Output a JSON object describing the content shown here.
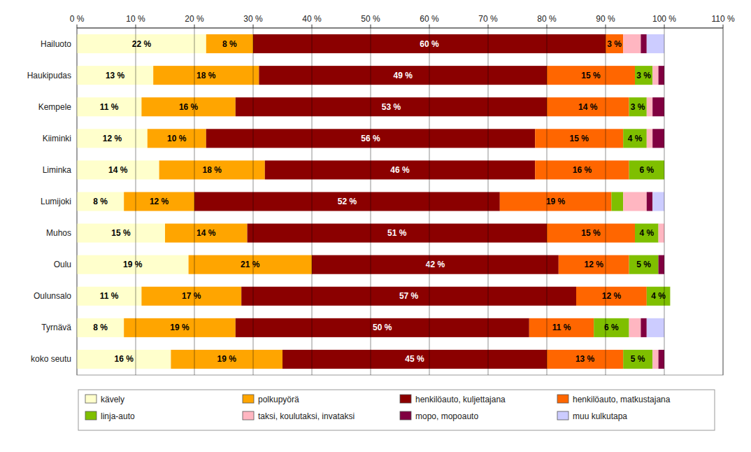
{
  "chart_data": {
    "type": "bar",
    "orientation": "horizontal",
    "stacked": true,
    "grid": true,
    "legend": "bottom",
    "data_labels": true,
    "categories": [
      "Hailuoto",
      "Haukipudas",
      "Kempele",
      "Kiiminki",
      "Liminka",
      "Lumijoki",
      "Muhos",
      "Oulu",
      "Oulunsalo",
      "Tyrnävä",
      "koko seutu"
    ],
    "series": [
      {
        "name": "kävely",
        "color": "#FFFFCC",
        "values": [
          22,
          13,
          11,
          12,
          14,
          8,
          15,
          19,
          11,
          8,
          16
        ],
        "value_labels": [
          "22 %",
          "13 %",
          "11 %",
          "12 %",
          "14 %",
          "8 %",
          "15 %",
          "19 %",
          "11 %",
          "8 %",
          "16 %"
        ]
      },
      {
        "name": "polkupyörä",
        "color": "#FFA500",
        "values": [
          8,
          18,
          16,
          10,
          18,
          12,
          14,
          21,
          17,
          19,
          19
        ],
        "value_labels": [
          "8 %",
          "18 %",
          "16 %",
          "10 %",
          "18 %",
          "12 %",
          "14 %",
          "21 %",
          "17 %",
          "19 %",
          "19 %"
        ]
      },
      {
        "name": "henkilöauto, kuljettajana",
        "color": "#8B0000",
        "values": [
          60,
          49,
          53,
          56,
          46,
          52,
          51,
          42,
          57,
          50,
          45
        ],
        "value_labels": [
          "60 %",
          "49 %",
          "53 %",
          "56 %",
          "46 %",
          "52 %",
          "51 %",
          "42 %",
          "57 %",
          "50 %",
          "45 %"
        ]
      },
      {
        "name": "henkilöauto, matkustajana",
        "color": "#FF6600",
        "values": [
          3,
          15,
          14,
          15,
          16,
          19,
          15,
          12,
          12,
          11,
          13
        ],
        "value_labels": [
          "3 %",
          "15 %",
          "14 %",
          "15 %",
          "16 %",
          "19 %",
          "15 %",
          "12 %",
          "12 %",
          "11 %",
          "13 %"
        ]
      },
      {
        "name": "linja-auto",
        "color": "#7FBF00",
        "values": [
          0,
          3,
          3,
          4,
          6,
          2,
          4,
          5,
          4,
          6,
          5
        ],
        "value_labels": [
          null,
          "3 %",
          "3 %",
          "4 %",
          "6 %",
          null,
          "4 %",
          "5 %",
          "4 %",
          "6 %",
          "5 %"
        ]
      },
      {
        "name": "taksi, koulutaksi, invataksi",
        "color": "#FFB6C1",
        "values": [
          3,
          1,
          1,
          1,
          0,
          4,
          1,
          0,
          0,
          2,
          1
        ]
      },
      {
        "name": "mopo, mopoauto",
        "color": "#800040",
        "values": [
          1,
          1,
          2,
          2,
          0,
          1,
          0,
          1,
          0,
          1,
          1
        ]
      },
      {
        "name": "muu kulkutapa",
        "color": "#CCCCFF",
        "values": [
          3,
          0,
          0,
          0,
          0,
          2,
          0,
          0,
          0,
          3,
          0
        ]
      }
    ],
    "xlim": [
      0,
      110
    ],
    "xticks": [
      {
        "value": 0,
        "label": "0 %"
      },
      {
        "value": 10,
        "label": "10 %"
      },
      {
        "value": 20,
        "label": "20 %"
      },
      {
        "value": 30,
        "label": "30 %"
      },
      {
        "value": 40,
        "label": "40 %"
      },
      {
        "value": 50,
        "label": "50 %"
      },
      {
        "value": 60,
        "label": "60 %"
      },
      {
        "value": 70,
        "label": "70 %"
      },
      {
        "value": 80,
        "label": "80 %"
      },
      {
        "value": 90,
        "label": "90 %"
      },
      {
        "value": 100,
        "label": "100 %"
      },
      {
        "value": 110,
        "label": "110 %"
      }
    ]
  }
}
